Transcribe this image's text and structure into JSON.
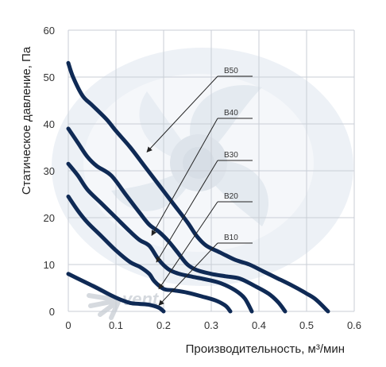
{
  "chart_data": {
    "type": "line",
    "title": "",
    "xlabel": "Производительность, м³/мин",
    "ylabel": "Статическое давление, Па",
    "xlim": [
      0,
      0.6
    ],
    "ylim": [
      0,
      60
    ],
    "x_ticks": [
      "0",
      "0.1",
      "0.2",
      "0.3",
      "0.4",
      "0.5",
      "0.6"
    ],
    "y_ticks": [
      "0",
      "10",
      "20",
      "30",
      "40",
      "50",
      "60"
    ],
    "grid": true,
    "watermark": "vent",
    "series": [
      {
        "name": "B50",
        "points": [
          [
            0,
            53
          ],
          [
            0.01,
            50
          ],
          [
            0.03,
            46
          ],
          [
            0.05,
            44
          ],
          [
            0.08,
            41
          ],
          [
            0.1,
            38.5
          ],
          [
            0.13,
            35
          ],
          [
            0.16,
            31
          ],
          [
            0.19,
            27
          ],
          [
            0.22,
            23
          ],
          [
            0.25,
            19
          ],
          [
            0.27,
            16
          ],
          [
            0.29,
            14
          ],
          [
            0.32,
            12.5
          ],
          [
            0.35,
            11
          ],
          [
            0.38,
            10
          ],
          [
            0.41,
            8.5
          ],
          [
            0.44,
            7
          ],
          [
            0.47,
            5.5
          ],
          [
            0.5,
            3.8
          ],
          [
            0.52,
            2.5
          ],
          [
            0.545,
            0
          ]
        ]
      },
      {
        "name": "B40",
        "points": [
          [
            0,
            39
          ],
          [
            0.02,
            36
          ],
          [
            0.04,
            33
          ],
          [
            0.06,
            31
          ],
          [
            0.09,
            29
          ],
          [
            0.12,
            25
          ],
          [
            0.15,
            21
          ],
          [
            0.17,
            18.5
          ],
          [
            0.19,
            17
          ],
          [
            0.21,
            15
          ],
          [
            0.23,
            12.5
          ],
          [
            0.25,
            10
          ],
          [
            0.27,
            8.8
          ],
          [
            0.3,
            8
          ],
          [
            0.33,
            7.5
          ],
          [
            0.36,
            7
          ],
          [
            0.39,
            5.5
          ],
          [
            0.42,
            3.8
          ],
          [
            0.44,
            2
          ],
          [
            0.455,
            0
          ]
        ]
      },
      {
        "name": "B30",
        "points": [
          [
            0,
            31.5
          ],
          [
            0.02,
            29
          ],
          [
            0.04,
            26
          ],
          [
            0.07,
            23
          ],
          [
            0.1,
            20
          ],
          [
            0.13,
            17
          ],
          [
            0.15,
            15.2
          ],
          [
            0.17,
            14
          ],
          [
            0.19,
            11
          ],
          [
            0.21,
            9
          ],
          [
            0.23,
            8.1
          ],
          [
            0.26,
            7.4
          ],
          [
            0.29,
            6.8
          ],
          [
            0.32,
            6
          ],
          [
            0.35,
            4.5
          ],
          [
            0.37,
            2.8
          ],
          [
            0.385,
            0
          ]
        ]
      },
      {
        "name": "B20",
        "points": [
          [
            0,
            24.5
          ],
          [
            0.02,
            21.5
          ],
          [
            0.04,
            19
          ],
          [
            0.07,
            16
          ],
          [
            0.1,
            13
          ],
          [
            0.13,
            10.5
          ],
          [
            0.15,
            9.5
          ],
          [
            0.17,
            8
          ],
          [
            0.18,
            6.5
          ],
          [
            0.2,
            4.8
          ],
          [
            0.22,
            4.5
          ],
          [
            0.25,
            4
          ],
          [
            0.28,
            3.2
          ],
          [
            0.31,
            2.3
          ],
          [
            0.33,
            1.2
          ],
          [
            0.34,
            0
          ]
        ]
      },
      {
        "name": "B10",
        "points": [
          [
            0,
            8
          ],
          [
            0.03,
            6.5
          ],
          [
            0.06,
            5
          ],
          [
            0.09,
            3.4
          ],
          [
            0.11,
            2.5
          ],
          [
            0.13,
            1.8
          ],
          [
            0.15,
            1.6
          ],
          [
            0.17,
            1.4
          ],
          [
            0.19,
            0.8
          ],
          [
            0.2,
            0
          ]
        ]
      }
    ],
    "label_points": [
      {
        "name": "B50",
        "x": 0.165,
        "y": 34
      },
      {
        "name": "B40",
        "x": 0.175,
        "y": 16.2
      },
      {
        "name": "B30",
        "x": 0.185,
        "y": 10.5
      },
      {
        "name": "B20",
        "x": 0.19,
        "y": 4.8
      },
      {
        "name": "B10",
        "x": 0.19,
        "y": 1.3
      }
    ]
  }
}
